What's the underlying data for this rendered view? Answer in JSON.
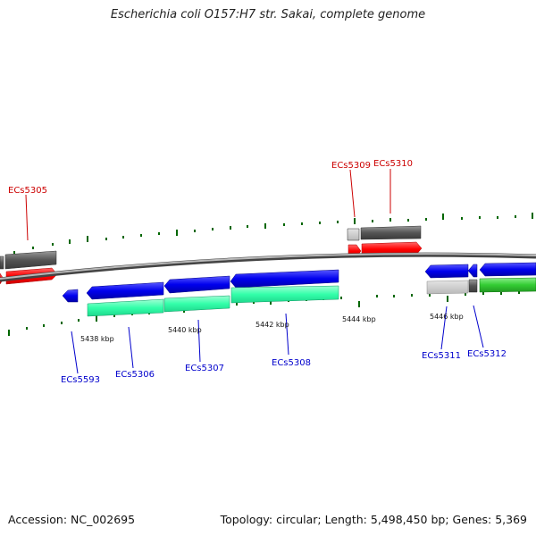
{
  "title": "Escherichia coli O157:H7 str. Sakai, complete genome",
  "footer": {
    "accession": "Accession: NC_002695",
    "topology": "Topology: circular; Length: 5,498,450 bp; Genes: 5,369"
  },
  "colors": {
    "forward_cds": "#ff0000",
    "reverse_cds": "#0000ee",
    "forward_label": "#cc0000",
    "reverse_label": "#0000cc",
    "gray_feature": "#666666",
    "teal_feature": "#33ffaa",
    "green_feature": "#33cc33",
    "gc_ticks": "#006600",
    "backbone": "#777777"
  },
  "kbp_labels": [
    "5438 kbp",
    "5440 kbp",
    "5442 kbp",
    "5444 kbp",
    "5446 kbp"
  ],
  "forward_genes": [
    "ECs5305",
    "ECs5309",
    "ECs5310"
  ],
  "reverse_genes": [
    "ECs5593",
    "ECs5306",
    "ECs5307",
    "ECs5308",
    "ECs5311",
    "ECs5312"
  ]
}
